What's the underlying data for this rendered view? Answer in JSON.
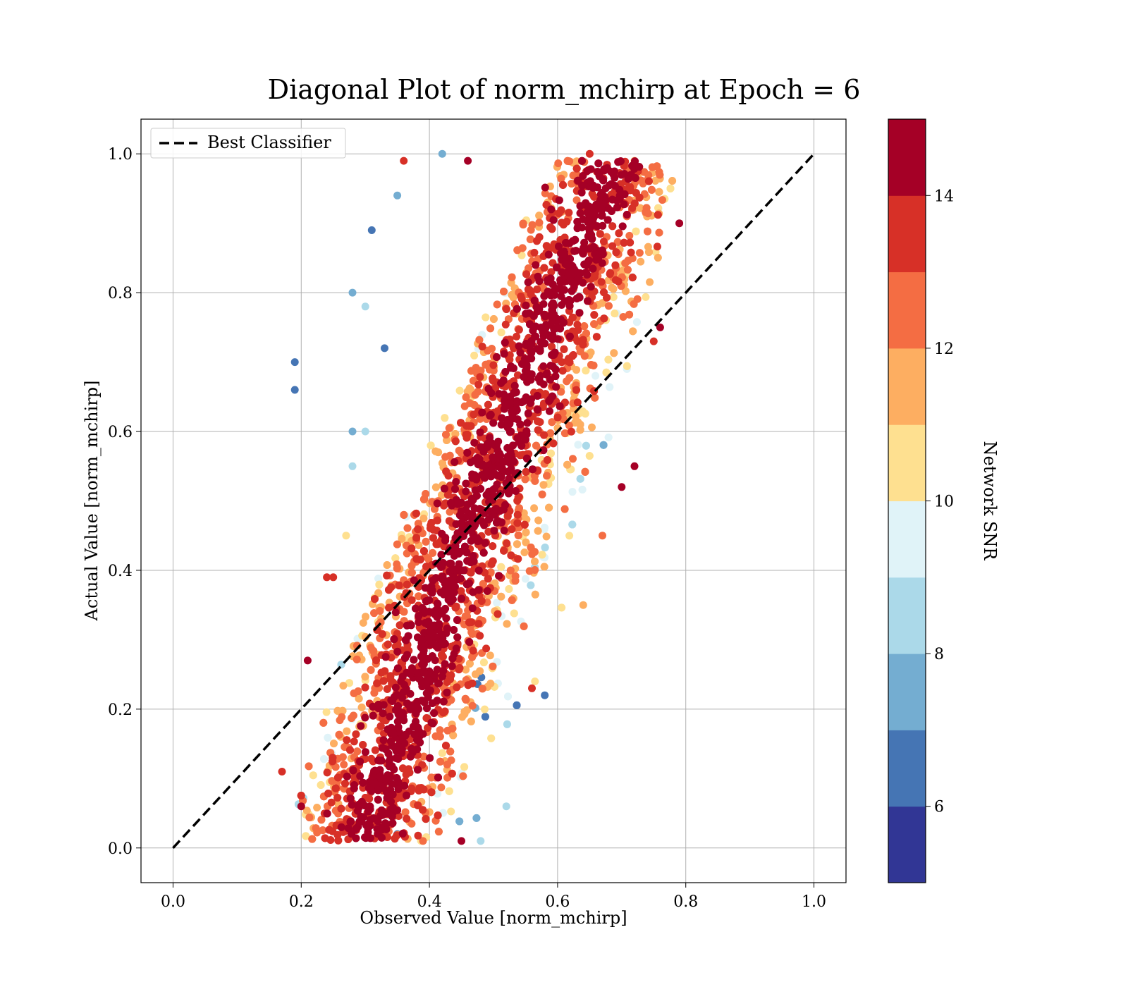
{
  "chart_data": {
    "type": "scatter",
    "title": "Diagonal Plot of norm_mchirp at Epoch = 6",
    "xlabel": "Observed Value [norm_mchirp]",
    "ylabel": "Actual Value [norm_mchirp]",
    "xlim": [
      -0.05,
      1.05
    ],
    "ylim": [
      -0.05,
      1.05
    ],
    "x_ticks": [
      "0.0",
      "0.2",
      "0.4",
      "0.6",
      "0.8",
      "1.0"
    ],
    "y_ticks": [
      "0.0",
      "0.2",
      "0.4",
      "0.6",
      "0.8",
      "1.0"
    ],
    "grid": true,
    "legend": {
      "placement": "top-left",
      "entries": [
        "Best Classifier"
      ]
    },
    "reference_line": {
      "name": "Best Classifier",
      "style": "dashed",
      "color": "#000000",
      "x": [
        0.0,
        1.0
      ],
      "y": [
        0.0,
        1.0
      ]
    },
    "colorbar": {
      "label": "Network SNR",
      "range": [
        5,
        15
      ],
      "ticks": [
        "6",
        "8",
        "10",
        "12",
        "14"
      ],
      "colors": [
        "#313695",
        "#4575b4",
        "#74add1",
        "#abd9e9",
        "#e0f3f8",
        "#fee090",
        "#fdae61",
        "#f46d43",
        "#d73027",
        "#a50026"
      ]
    },
    "points": [
      [
        0.19,
        0.7,
        6
      ],
      [
        0.19,
        0.66,
        6
      ],
      [
        0.31,
        0.89,
        6
      ],
      [
        0.28,
        0.8,
        7
      ],
      [
        0.35,
        0.94,
        7
      ],
      [
        0.3,
        0.78,
        8
      ],
      [
        0.33,
        0.72,
        6
      ],
      [
        0.24,
        0.39,
        13
      ],
      [
        0.25,
        0.39,
        13
      ],
      [
        0.17,
        0.11,
        13
      ],
      [
        0.2,
        0.06,
        14
      ],
      [
        0.21,
        0.27,
        14
      ],
      [
        0.56,
        0.23,
        13
      ],
      [
        0.58,
        0.22,
        6
      ],
      [
        0.64,
        0.35,
        11
      ],
      [
        0.59,
        0.92,
        14
      ],
      [
        0.79,
        0.9,
        15
      ],
      [
        0.76,
        0.75,
        15
      ],
      [
        0.75,
        0.73,
        13
      ],
      [
        0.72,
        0.55,
        14
      ],
      [
        0.7,
        0.52,
        15
      ],
      [
        0.67,
        0.45,
        12
      ],
      [
        0.36,
        0.99,
        13
      ],
      [
        0.42,
        1.0,
        7
      ],
      [
        0.46,
        0.99,
        15
      ],
      [
        0.65,
        1.0,
        13
      ],
      [
        0.72,
        0.99,
        11
      ],
      [
        0.35,
        0.02,
        6
      ],
      [
        0.39,
        0.01,
        12
      ],
      [
        0.45,
        0.01,
        14
      ],
      [
        0.48,
        0.01,
        8
      ],
      [
        0.52,
        0.06,
        8
      ],
      [
        0.3,
        0.6,
        8
      ],
      [
        0.28,
        0.55,
        8
      ],
      [
        0.27,
        0.45,
        10
      ],
      [
        0.28,
        0.6,
        7
      ]
    ]
  }
}
